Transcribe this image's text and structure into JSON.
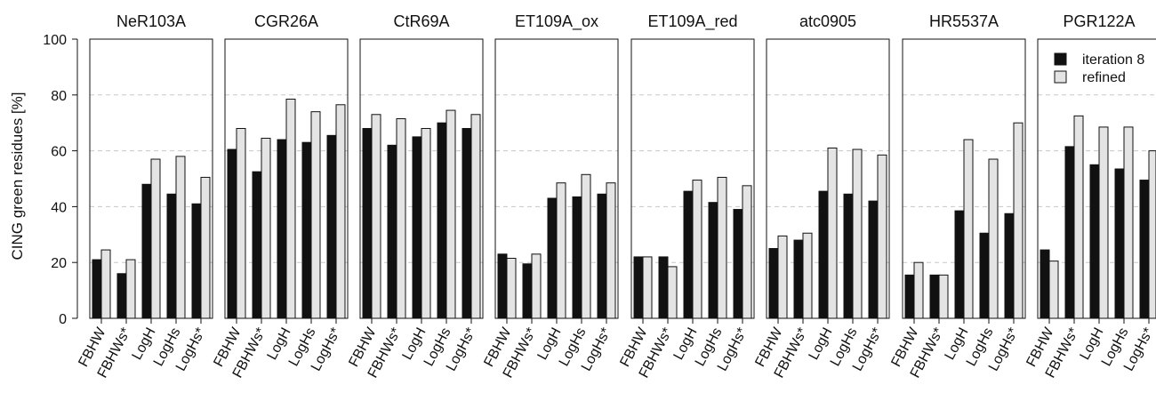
{
  "chart_data": {
    "type": "bar",
    "ylabel": "CING green residues [%]",
    "ylim": [
      0,
      100
    ],
    "yticks": [
      0,
      20,
      40,
      60,
      80,
      100
    ],
    "grid": "horizontal dashed",
    "categories": [
      "FBHW",
      "FBHWs*",
      "LogH",
      "LogHs",
      "LogHs*"
    ],
    "legend": {
      "position": "top-right",
      "entries": [
        {
          "name": "iteration 8",
          "color": "#111111"
        },
        {
          "name": "refined",
          "color": "#e4e4e4"
        }
      ]
    },
    "panels": [
      {
        "title": "NeR103A",
        "series": [
          {
            "name": "iteration 8",
            "values": [
              21,
              16,
              48,
              44.5,
              41
            ]
          },
          {
            "name": "refined",
            "values": [
              24.5,
              21,
              57,
              58,
              50.5
            ]
          }
        ]
      },
      {
        "title": "CGR26A",
        "series": [
          {
            "name": "iteration 8",
            "values": [
              60.5,
              52.5,
              64,
              63,
              65.5
            ]
          },
          {
            "name": "refined",
            "values": [
              68,
              64.5,
              78.5,
              74,
              76.5
            ]
          }
        ]
      },
      {
        "title": "CtR69A",
        "series": [
          {
            "name": "iteration 8",
            "values": [
              68,
              62,
              65,
              70,
              68
            ]
          },
          {
            "name": "refined",
            "values": [
              73,
              71.5,
              68,
              74.5,
              73
            ]
          }
        ]
      },
      {
        "title": "ET109A_ox",
        "series": [
          {
            "name": "iteration 8",
            "values": [
              23,
              19.5,
              43,
              43.5,
              44.5
            ]
          },
          {
            "name": "refined",
            "values": [
              21.5,
              23,
              48.5,
              51.5,
              48.5
            ]
          }
        ]
      },
      {
        "title": "ET109A_red",
        "series": [
          {
            "name": "iteration 8",
            "values": [
              22,
              22,
              45.5,
              41.5,
              39
            ]
          },
          {
            "name": "refined",
            "values": [
              22,
              18.5,
              49.5,
              50.5,
              47.5
            ]
          }
        ]
      },
      {
        "title": "atc0905",
        "series": [
          {
            "name": "iteration 8",
            "values": [
              25,
              28,
              45.5,
              44.5,
              42
            ]
          },
          {
            "name": "refined",
            "values": [
              29.5,
              30.5,
              61,
              60.5,
              58.5
            ]
          }
        ]
      },
      {
        "title": "HR5537A",
        "series": [
          {
            "name": "iteration 8",
            "values": [
              15.5,
              15.5,
              38.5,
              30.5,
              37.5
            ]
          },
          {
            "name": "refined",
            "values": [
              20,
              15.5,
              64,
              57,
              70
            ]
          }
        ]
      },
      {
        "title": "PGR122A",
        "series": [
          {
            "name": "iteration 8",
            "values": [
              24.5,
              61.5,
              55,
              53.5,
              49.5
            ]
          },
          {
            "name": "refined",
            "values": [
              20.5,
              72.5,
              68.5,
              68.5,
              60
            ]
          }
        ]
      }
    ]
  }
}
